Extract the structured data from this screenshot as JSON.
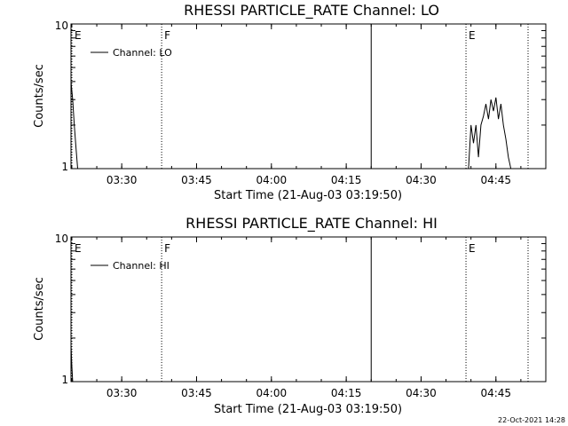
{
  "chart_data": [
    {
      "type": "line",
      "title": "RHESSI PARTICLE_RATE Channel: LO",
      "xlabel": "Start Time (21-Aug-03 03:19:50)",
      "ylabel": "Counts/sec",
      "xlim": [
        "03:19:50",
        "04:55:00"
      ],
      "ylim": [
        1,
        10
      ],
      "yscale": "log",
      "x_ticks": [
        "03:30",
        "03:45",
        "04:00",
        "04:15",
        "04:30",
        "04:45"
      ],
      "y_ticks": [
        "1",
        "10"
      ],
      "grid": false,
      "legend": {
        "position": "top-left",
        "entries": [
          "Channel: LO"
        ]
      },
      "markers": [
        {
          "time": "03:19:50",
          "label": "E",
          "style": "dotted"
        },
        {
          "time": "03:38:00",
          "label": "F",
          "style": "dotted"
        },
        {
          "time": "04:20:00",
          "label": "",
          "style": "solid"
        },
        {
          "time": "04:39:00",
          "label": "E",
          "style": "dotted"
        },
        {
          "time": "04:56:00",
          "label": "",
          "style": "dotted"
        }
      ],
      "series": [
        {
          "name": "Channel: LO",
          "x": [
            "03:19:50",
            "03:20:10",
            "03:20:30",
            "03:20:50",
            "03:21:10",
            "04:39:30",
            "04:40:00",
            "04:40:30",
            "04:41:00",
            "04:41:30",
            "04:42:00",
            "04:42:30",
            "04:43:00",
            "04:43:30",
            "04:44:00",
            "04:44:30",
            "04:45:00",
            "04:45:30",
            "04:46:00",
            "04:46:30",
            "04:47:00",
            "04:47:30",
            "04:48:00"
          ],
          "y": [
            4,
            3,
            2,
            1.4,
            1,
            1,
            2,
            1.5,
            2,
            1.2,
            2,
            2.3,
            2.8,
            2.2,
            3,
            2.5,
            3.1,
            2.2,
            2.8,
            2,
            1.6,
            1.2,
            1
          ]
        }
      ]
    },
    {
      "type": "line",
      "title": "RHESSI PARTICLE_RATE Channel: HI",
      "xlabel": "Start Time (21-Aug-03 03:19:50)",
      "ylabel": "Counts/sec",
      "xlim": [
        "03:19:50",
        "04:55:00"
      ],
      "ylim": [
        1,
        10
      ],
      "yscale": "log",
      "x_ticks": [
        "03:30",
        "03:45",
        "04:00",
        "04:15",
        "04:30",
        "04:45"
      ],
      "y_ticks": [
        "1",
        "10"
      ],
      "grid": false,
      "legend": {
        "position": "top-left",
        "entries": [
          "Channel: HI"
        ]
      },
      "markers": [
        {
          "time": "03:19:50",
          "label": "E",
          "style": "dotted"
        },
        {
          "time": "03:38:00",
          "label": "F",
          "style": "dotted"
        },
        {
          "time": "04:20:00",
          "label": "",
          "style": "solid"
        },
        {
          "time": "04:39:00",
          "label": "E",
          "style": "dotted"
        },
        {
          "time": "04:56:00",
          "label": "",
          "style": "dotted"
        }
      ],
      "series": [
        {
          "name": "Channel: HI",
          "x": [
            "03:19:50",
            "03:20:00",
            "03:20:10"
          ],
          "y": [
            1.8,
            1.3,
            1
          ]
        }
      ]
    }
  ],
  "footer": {
    "timestamp": "22-Oct-2021 14:28"
  }
}
